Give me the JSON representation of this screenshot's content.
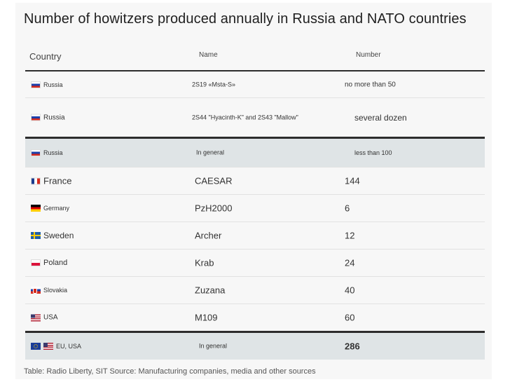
{
  "title": "Number of howitzers produced annually in Russia and NATO countries",
  "columns": {
    "country": "Country",
    "name": "Name",
    "number": "Number"
  },
  "rows": [
    {
      "country": "Russia",
      "flag": "russia-flag-icon",
      "name": "2S19 «Msta-S»",
      "number": "no more than 50"
    },
    {
      "country": "Russia",
      "flag": "russia-flag-icon",
      "name": "2S44 \"Hyacinth-K\" and 2S43 \"Mallow\"",
      "number": "several dozen"
    },
    {
      "country": "Russia",
      "flag": "russia-flag-icon",
      "name": "In general",
      "number": "less than 100"
    },
    {
      "country": "France",
      "flag": "france-flag-icon",
      "name": "CAESAR",
      "number": "144"
    },
    {
      "country": "Germany",
      "flag": "germany-flag-icon",
      "name": "PzH2000",
      "number": "6"
    },
    {
      "country": "Sweden",
      "flag": "sweden-flag-icon",
      "name": "Archer",
      "number": "12"
    },
    {
      "country": "Poland",
      "flag": "poland-flag-icon",
      "name": "Krab",
      "number": "24"
    },
    {
      "country": "Slovakia",
      "flag": "slovakia-flag-icon",
      "name": "Zuzana",
      "number": "40"
    },
    {
      "country": "USA",
      "flag": "usa-flag-icon",
      "name": "M109",
      "number": "60"
    },
    {
      "country": "EU, USA",
      "flag": "eu-flag-icon",
      "name": "In general",
      "number": "286"
    }
  ],
  "footer": "Table: Radio Liberty, SIT Source: Manufacturing companies, media and other sources",
  "colors": {
    "total_row_bg": "#dfe4e6",
    "card_bg": "#f7f7f7",
    "rule": "#2d2d2d"
  }
}
